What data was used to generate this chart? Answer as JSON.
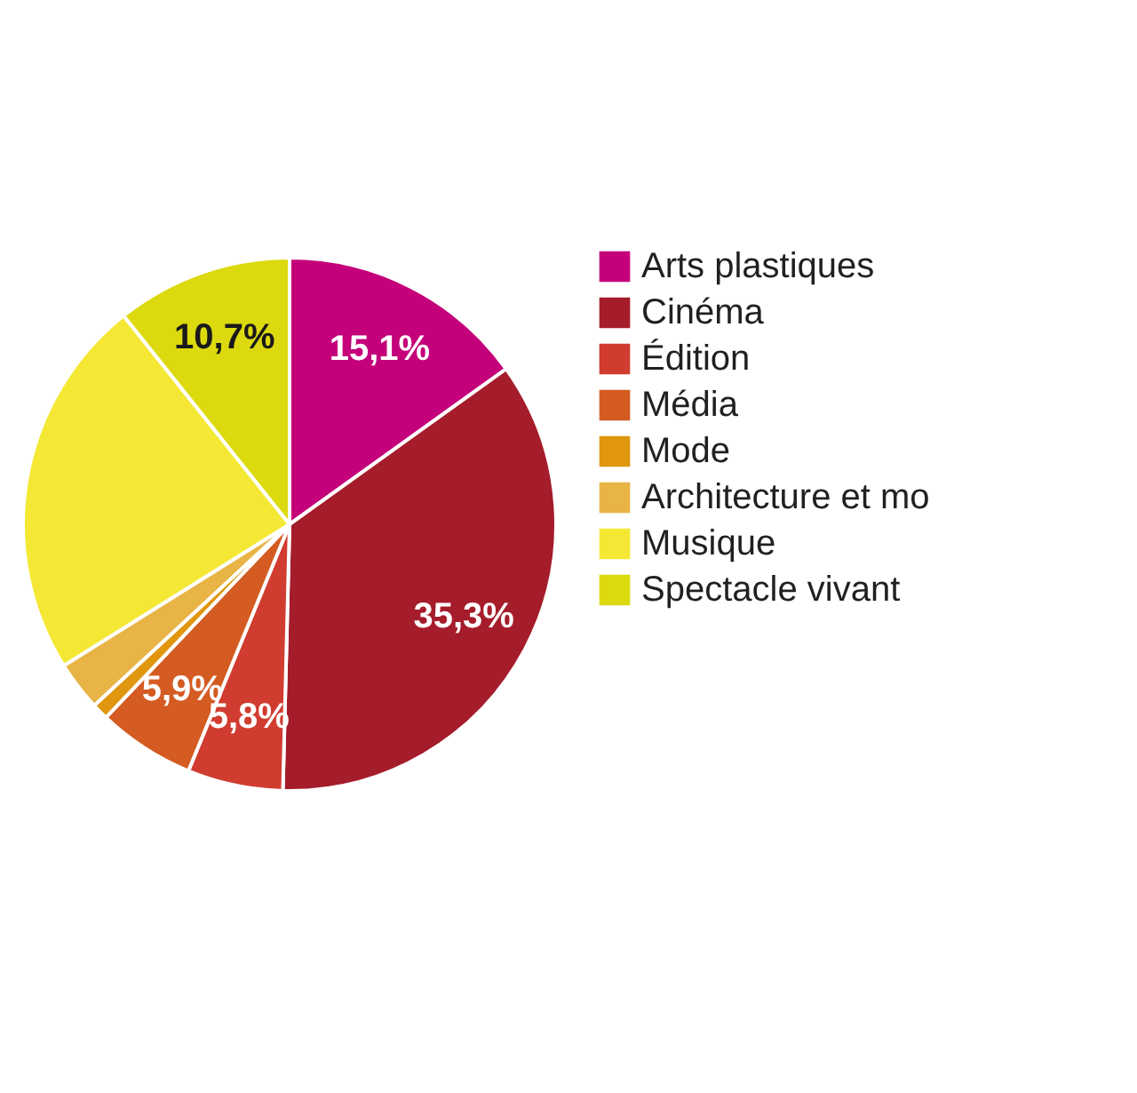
{
  "chart_data": {
    "type": "pie",
    "categories": [
      "Arts plastiques",
      "Cinéma",
      "Édition",
      "Média",
      "Mode",
      "Architecture et mo",
      "Musique",
      "Spectacle vivant"
    ],
    "values": [
      15.1,
      35.3,
      5.8,
      5.9,
      1.0,
      3.0,
      23.2,
      10.7
    ],
    "colors": [
      "#c4007a",
      "#a51c2b",
      "#d13c30",
      "#d45b22",
      "#e0960f",
      "#e8b446",
      "#f5e835",
      "#dcd90f"
    ],
    "value_labels": [
      "15,1%",
      "35,3%",
      "5,8%",
      "5,9%",
      null,
      null,
      null,
      "10,7%"
    ],
    "legend": "right"
  }
}
